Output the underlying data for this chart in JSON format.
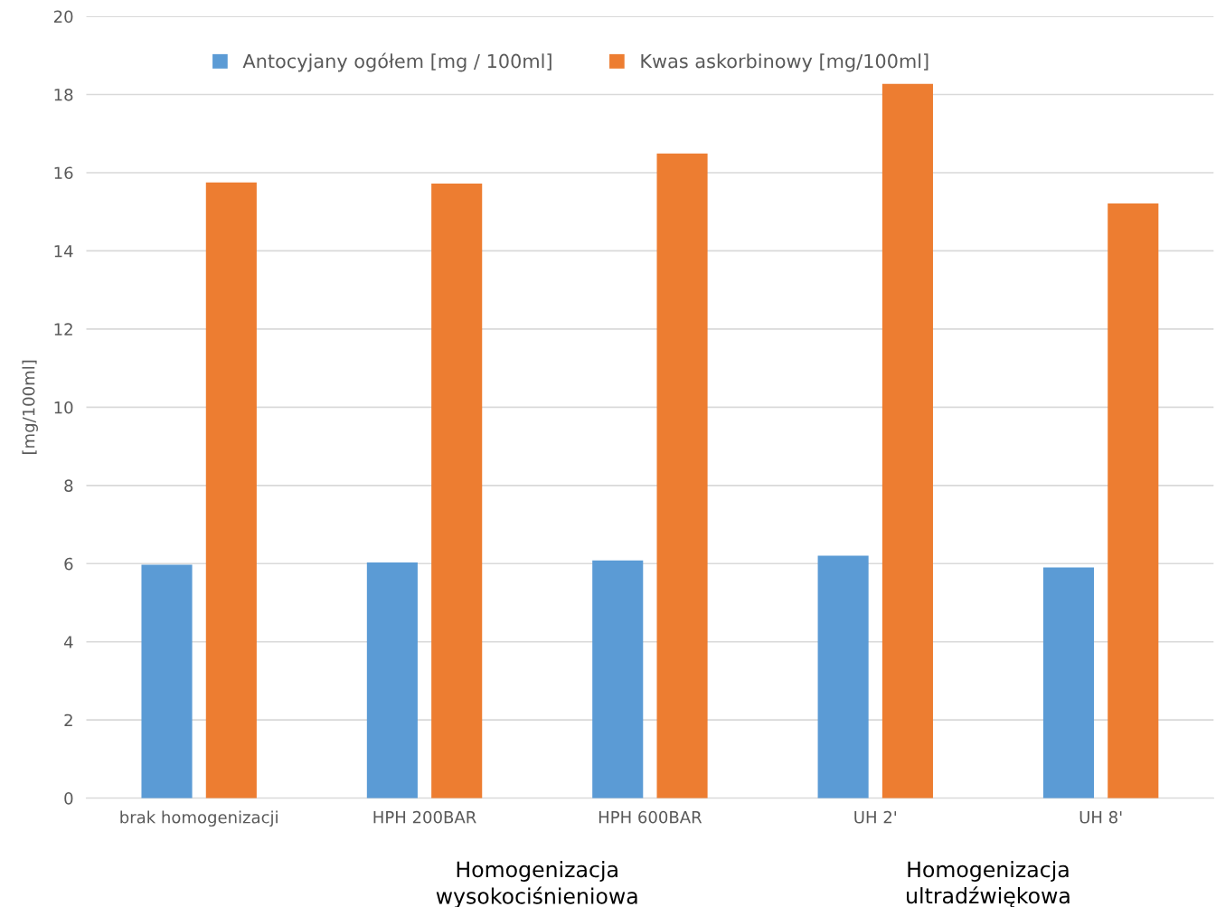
{
  "chart_data": {
    "type": "bar",
    "ylabel": "[mg/100ml]",
    "categories": [
      "brak homogenizacji",
      "HPH 200BAR",
      "HPH 600BAR",
      "UH 2'",
      "UH 8'"
    ],
    "series": [
      {
        "name": "Antocyjany ogółem [mg / 100ml]",
        "color": "#5b9bd5",
        "values": [
          5.97,
          6.03,
          6.08,
          6.2,
          5.9
        ]
      },
      {
        "name": "Kwas askorbinowy [mg/100ml]",
        "color": "#ed7d31",
        "values": [
          15.75,
          15.72,
          16.49,
          18.27,
          15.21
        ]
      }
    ],
    "ylim": [
      0,
      20
    ],
    "yticks": [
      0,
      2,
      4,
      6,
      8,
      10,
      12,
      14,
      16,
      18,
      20
    ],
    "grid": "y",
    "legend": "top",
    "annotations": [
      "Homogenizacja\nwysokociśnieniowa",
      "Homogenizacja\nultradźwiękowa"
    ]
  }
}
